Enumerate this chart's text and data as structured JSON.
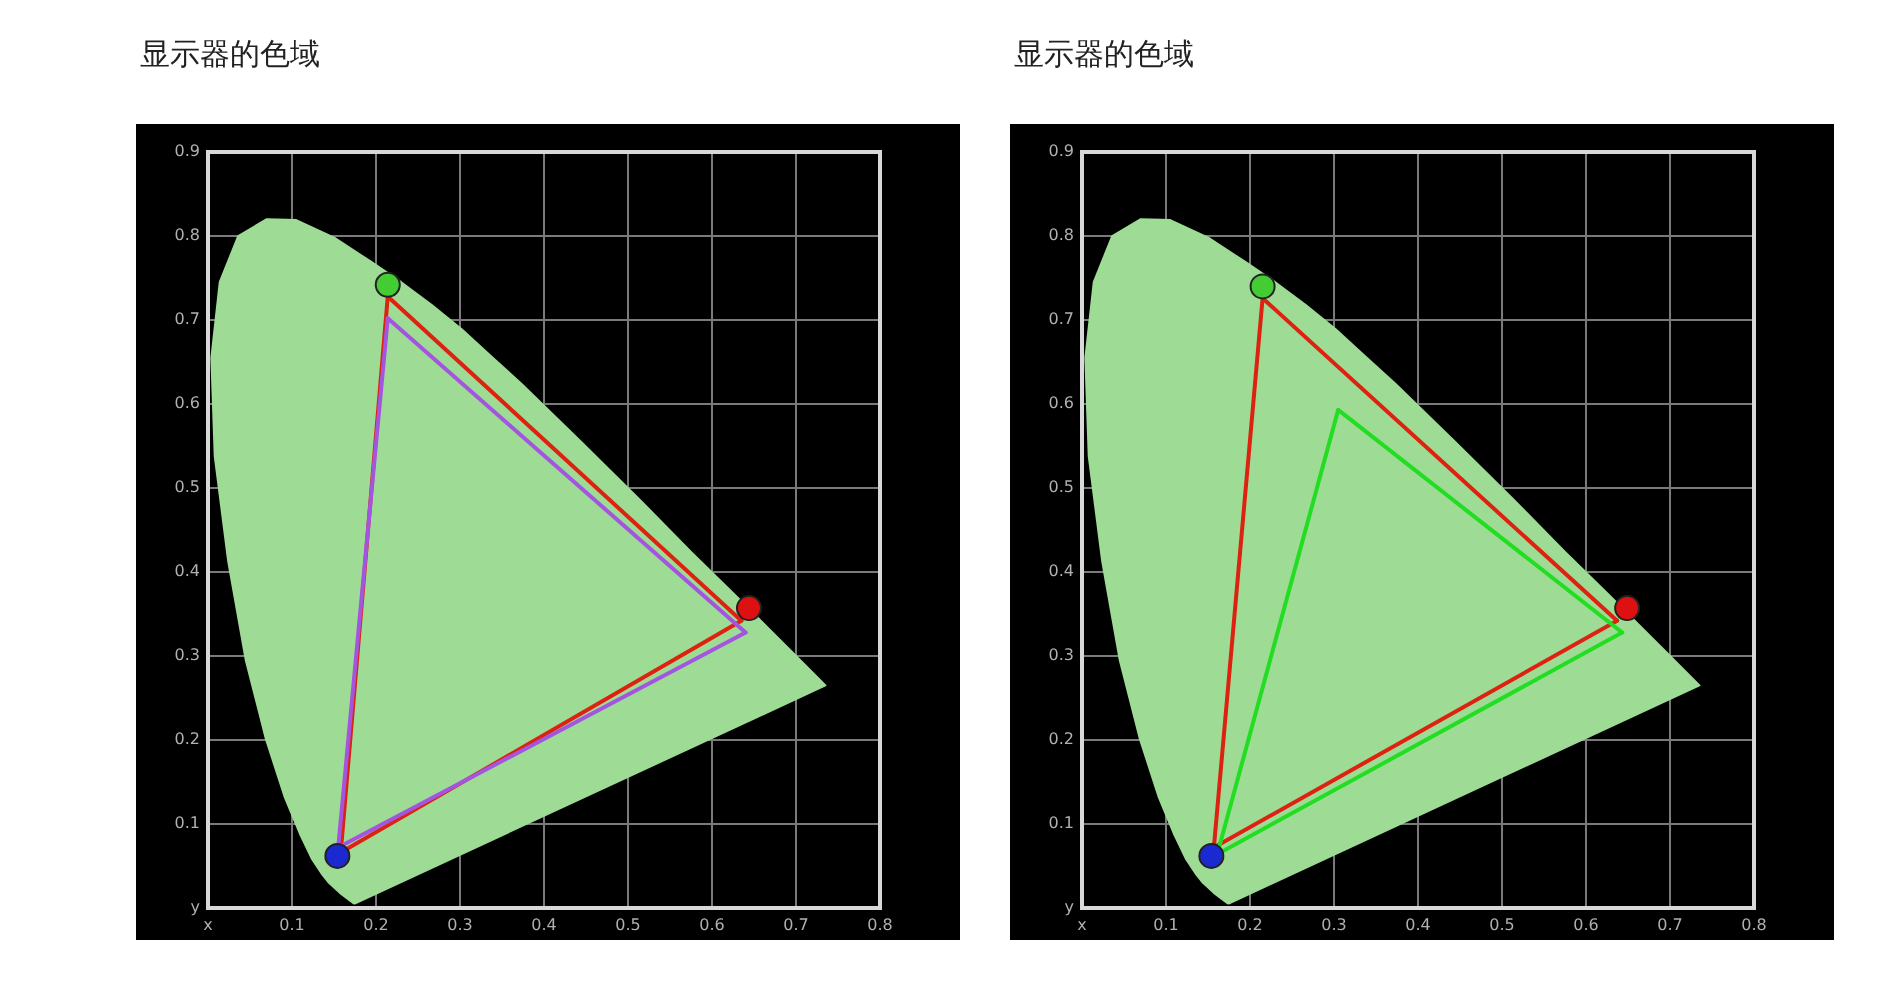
{
  "chart_data": [
    {
      "type": "line",
      "title": "显示器的色域",
      "xlim": [
        0,
        0.8
      ],
      "ylim": [
        0,
        0.9
      ],
      "xticks": [
        {
          "value": 0,
          "label": "x"
        },
        0.1,
        0.2,
        0.3,
        0.4,
        0.5,
        0.6,
        0.7,
        0.8
      ],
      "yticks": [
        {
          "value": 0,
          "label": "y"
        },
        0.1,
        0.2,
        0.3,
        0.4,
        0.5,
        0.6,
        0.7,
        0.8,
        0.9
      ],
      "grid": true,
      "series": [
        {
          "type": "area",
          "color": "#9edc96",
          "x": [
            0.174,
            0.157,
            0.144,
            0.136,
            0.124,
            0.11,
            0.091,
            0.069,
            0.045,
            0.024,
            0.008,
            0.004,
            0.014,
            0.036,
            0.07,
            0.105,
            0.152,
            0.193,
            0.23,
            0.266,
            0.302,
            0.337,
            0.373,
            0.444,
            0.513,
            0.575,
            0.627,
            0.666,
            0.692,
            0.719,
            0.735,
            0.174
          ],
          "values": [
            0.005,
            0.018,
            0.03,
            0.04,
            0.058,
            0.087,
            0.133,
            0.201,
            0.295,
            0.413,
            0.538,
            0.655,
            0.745,
            0.8,
            0.82,
            0.819,
            0.797,
            0.77,
            0.745,
            0.718,
            0.689,
            0.657,
            0.624,
            0.555,
            0.487,
            0.424,
            0.373,
            0.334,
            0.308,
            0.281,
            0.265,
            0.005
          ]
        },
        {
          "color": "#dd2211",
          "x": [
            0.214,
            0.635
          ],
          "values": [
            0.728,
            0.342
          ]
        },
        {
          "color": "#dd2211",
          "x": [
            0.158,
            0.214
          ],
          "values": [
            0.066,
            0.728
          ]
        },
        {
          "color": "#dd2211",
          "x": [
            0.158,
            0.635
          ],
          "values": [
            0.066,
            0.342
          ]
        },
        {
          "color": "#a455e0",
          "x": [
            0.214,
            0.64
          ],
          "values": [
            0.702,
            0.328
          ]
        },
        {
          "color": "#a455e0",
          "x": [
            0.155,
            0.214
          ],
          "values": [
            0.072,
            0.702
          ]
        },
        {
          "color": "#a455e0",
          "x": [
            0.155,
            0.64
          ],
          "values": [
            0.072,
            0.328
          ]
        },
        {
          "type": "scatter",
          "marker": "circle",
          "colors": [
            "#44cc33",
            "#dd1111",
            "#1a2ad0"
          ],
          "x": [
            0.214,
            0.644,
            0.154
          ],
          "values": [
            0.742,
            0.357,
            0.062
          ]
        }
      ]
    },
    {
      "type": "line",
      "title": "显示器的色域",
      "xlim": [
        0,
        0.8
      ],
      "ylim": [
        0,
        0.9
      ],
      "xticks": [
        {
          "value": 0,
          "label": "x"
        },
        0.1,
        0.2,
        0.3,
        0.4,
        0.5,
        0.6,
        0.7,
        0.8
      ],
      "yticks": [
        {
          "value": 0,
          "label": "y"
        },
        0.1,
        0.2,
        0.3,
        0.4,
        0.5,
        0.6,
        0.7,
        0.8,
        0.9
      ],
      "grid": true,
      "series": [
        {
          "type": "area",
          "color": "#9edc96",
          "x": [
            0.174,
            0.157,
            0.144,
            0.136,
            0.124,
            0.11,
            0.091,
            0.069,
            0.045,
            0.024,
            0.008,
            0.004,
            0.014,
            0.036,
            0.07,
            0.105,
            0.152,
            0.193,
            0.23,
            0.266,
            0.302,
            0.337,
            0.373,
            0.444,
            0.513,
            0.575,
            0.627,
            0.666,
            0.692,
            0.719,
            0.735,
            0.174
          ],
          "values": [
            0.005,
            0.018,
            0.03,
            0.04,
            0.058,
            0.087,
            0.133,
            0.201,
            0.295,
            0.413,
            0.538,
            0.655,
            0.745,
            0.8,
            0.82,
            0.819,
            0.797,
            0.77,
            0.745,
            0.718,
            0.689,
            0.657,
            0.624,
            0.555,
            0.487,
            0.424,
            0.373,
            0.334,
            0.308,
            0.281,
            0.265,
            0.005
          ]
        },
        {
          "color": "#dd2211",
          "x": [
            0.215,
            0.637
          ],
          "values": [
            0.726,
            0.342
          ]
        },
        {
          "color": "#dd2211",
          "x": [
            0.157,
            0.215
          ],
          "values": [
            0.072,
            0.726
          ]
        },
        {
          "color": "#dd2211",
          "x": [
            0.157,
            0.637
          ],
          "values": [
            0.072,
            0.342
          ]
        },
        {
          "color": "#22dd22",
          "x": [
            0.305,
            0.643
          ],
          "values": [
            0.593,
            0.328
          ]
        },
        {
          "color": "#22dd22",
          "x": [
            0.161,
            0.305
          ],
          "values": [
            0.064,
            0.593
          ]
        },
        {
          "color": "#22dd22",
          "x": [
            0.161,
            0.643
          ],
          "values": [
            0.064,
            0.328
          ]
        },
        {
          "type": "scatter",
          "marker": "circle",
          "colors": [
            "#44cc33",
            "#dd1111",
            "#1a2ad0"
          ],
          "x": [
            0.215,
            0.649,
            0.154
          ],
          "values": [
            0.74,
            0.357,
            0.062
          ]
        }
      ]
    }
  ]
}
